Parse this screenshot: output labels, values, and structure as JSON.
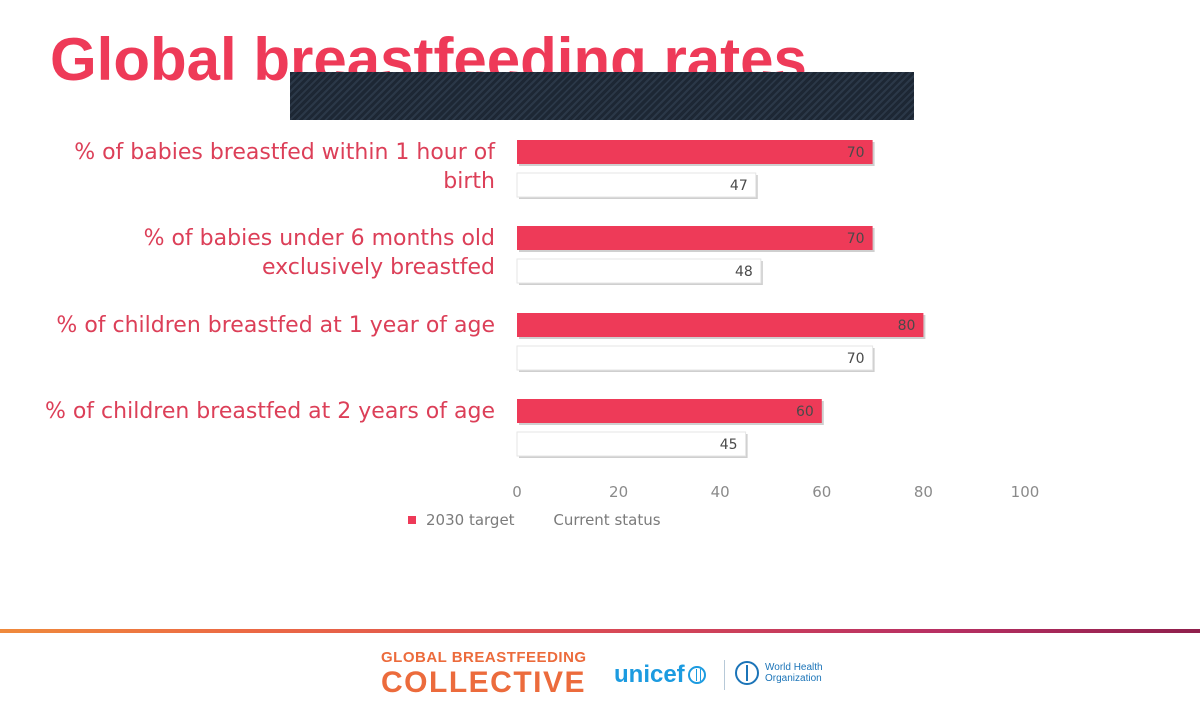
{
  "slide": {
    "title": "Global breastfeeding rates"
  },
  "chart_data": {
    "type": "bar",
    "orientation": "horizontal",
    "categories": [
      "% of babies breastfed within 1 hour of birth",
      "% of babies under 6 months old exclusively breastfed",
      "% of children breastfed at 1 year of age",
      "% of children breastfed at 2 years of age"
    ],
    "series": [
      {
        "name": "2030 target",
        "values": [
          70,
          70,
          80,
          60
        ],
        "color": "#ee3a58"
      },
      {
        "name": "Current status",
        "values": [
          47,
          48,
          70,
          45
        ],
        "color": "#ffffff"
      }
    ],
    "xlim": [
      0,
      100
    ],
    "xticks": [
      0,
      20,
      40,
      60,
      80,
      100
    ],
    "grid": false,
    "data_labels": true,
    "legend_position": "bottom-left"
  },
  "category_labels": [
    "% of babies breastfed within 1 hour of birth",
    "% of babies under 6 months old exclusively breastfed",
    "% of children breastfed at 1 year of age",
    "% of children breastfed at 2 years of age"
  ],
  "legend": {
    "target_label": "2030 target",
    "current_label": "Current status"
  },
  "footer": {
    "gbc_line1": "GLOBAL BREASTFEEDING",
    "gbc_line2": "COLLECTIVE",
    "unicef_text": "unicef",
    "who_line1": "World Health",
    "who_line2": "Organization",
    "colors": {
      "gbc": "#ec6b3c",
      "unicef": "#1c9be0",
      "who": "#1b74b8"
    }
  }
}
